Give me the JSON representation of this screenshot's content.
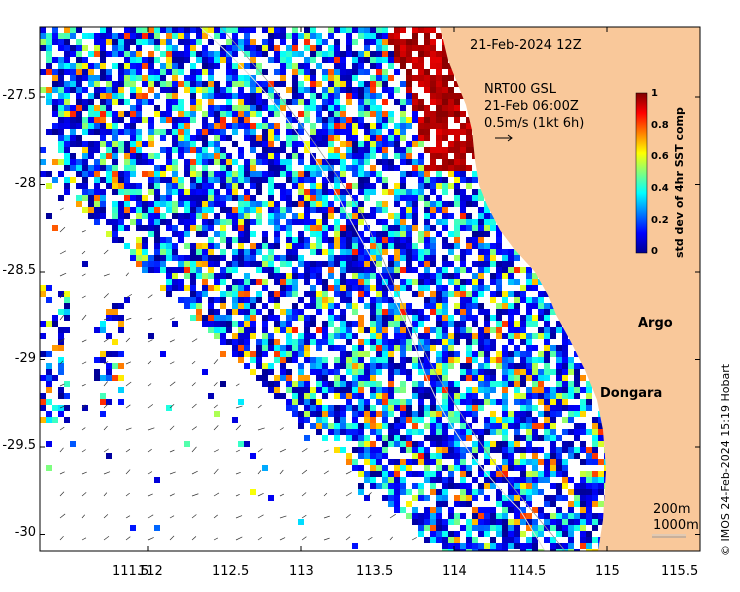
{
  "map": {
    "date_label": "21-Feb-2024 12Z",
    "current_info": [
      "NRT00 GSL",
      "21-Feb 06:00Z",
      "0.5m/s (1kt 6h)"
    ],
    "colorbar": {
      "label": "std dev of 4hr SST comp",
      "ticks": [
        "1",
        "0.8",
        "0.6",
        "0.4",
        "0.2",
        "0"
      ]
    },
    "places": [
      {
        "name": "Argo",
        "lon": 114.92,
        "lat": -28.78,
        "color": "#e000e0",
        "marker": "ring"
      },
      {
        "name": "Dongara",
        "lon": 114.92,
        "lat": -29.25,
        "color": "#000000",
        "marker": "dot"
      }
    ],
    "contours": [
      "200m",
      "1000m"
    ],
    "credit": "© IMOS 24-Feb-2024 15:19 Hobart",
    "x_ticks": [
      "111.5",
      "112",
      "112.5",
      "113",
      "113.5",
      "114",
      "114.5",
      "115",
      "115.5"
    ],
    "y_ticks": [
      "-27.5",
      "-28",
      "-28.5",
      "-29",
      "-29.5",
      "-30"
    ],
    "colors": {
      "land": "#f9c89a",
      "ocean": "#ffffff",
      "high_var": "#a00000"
    }
  }
}
